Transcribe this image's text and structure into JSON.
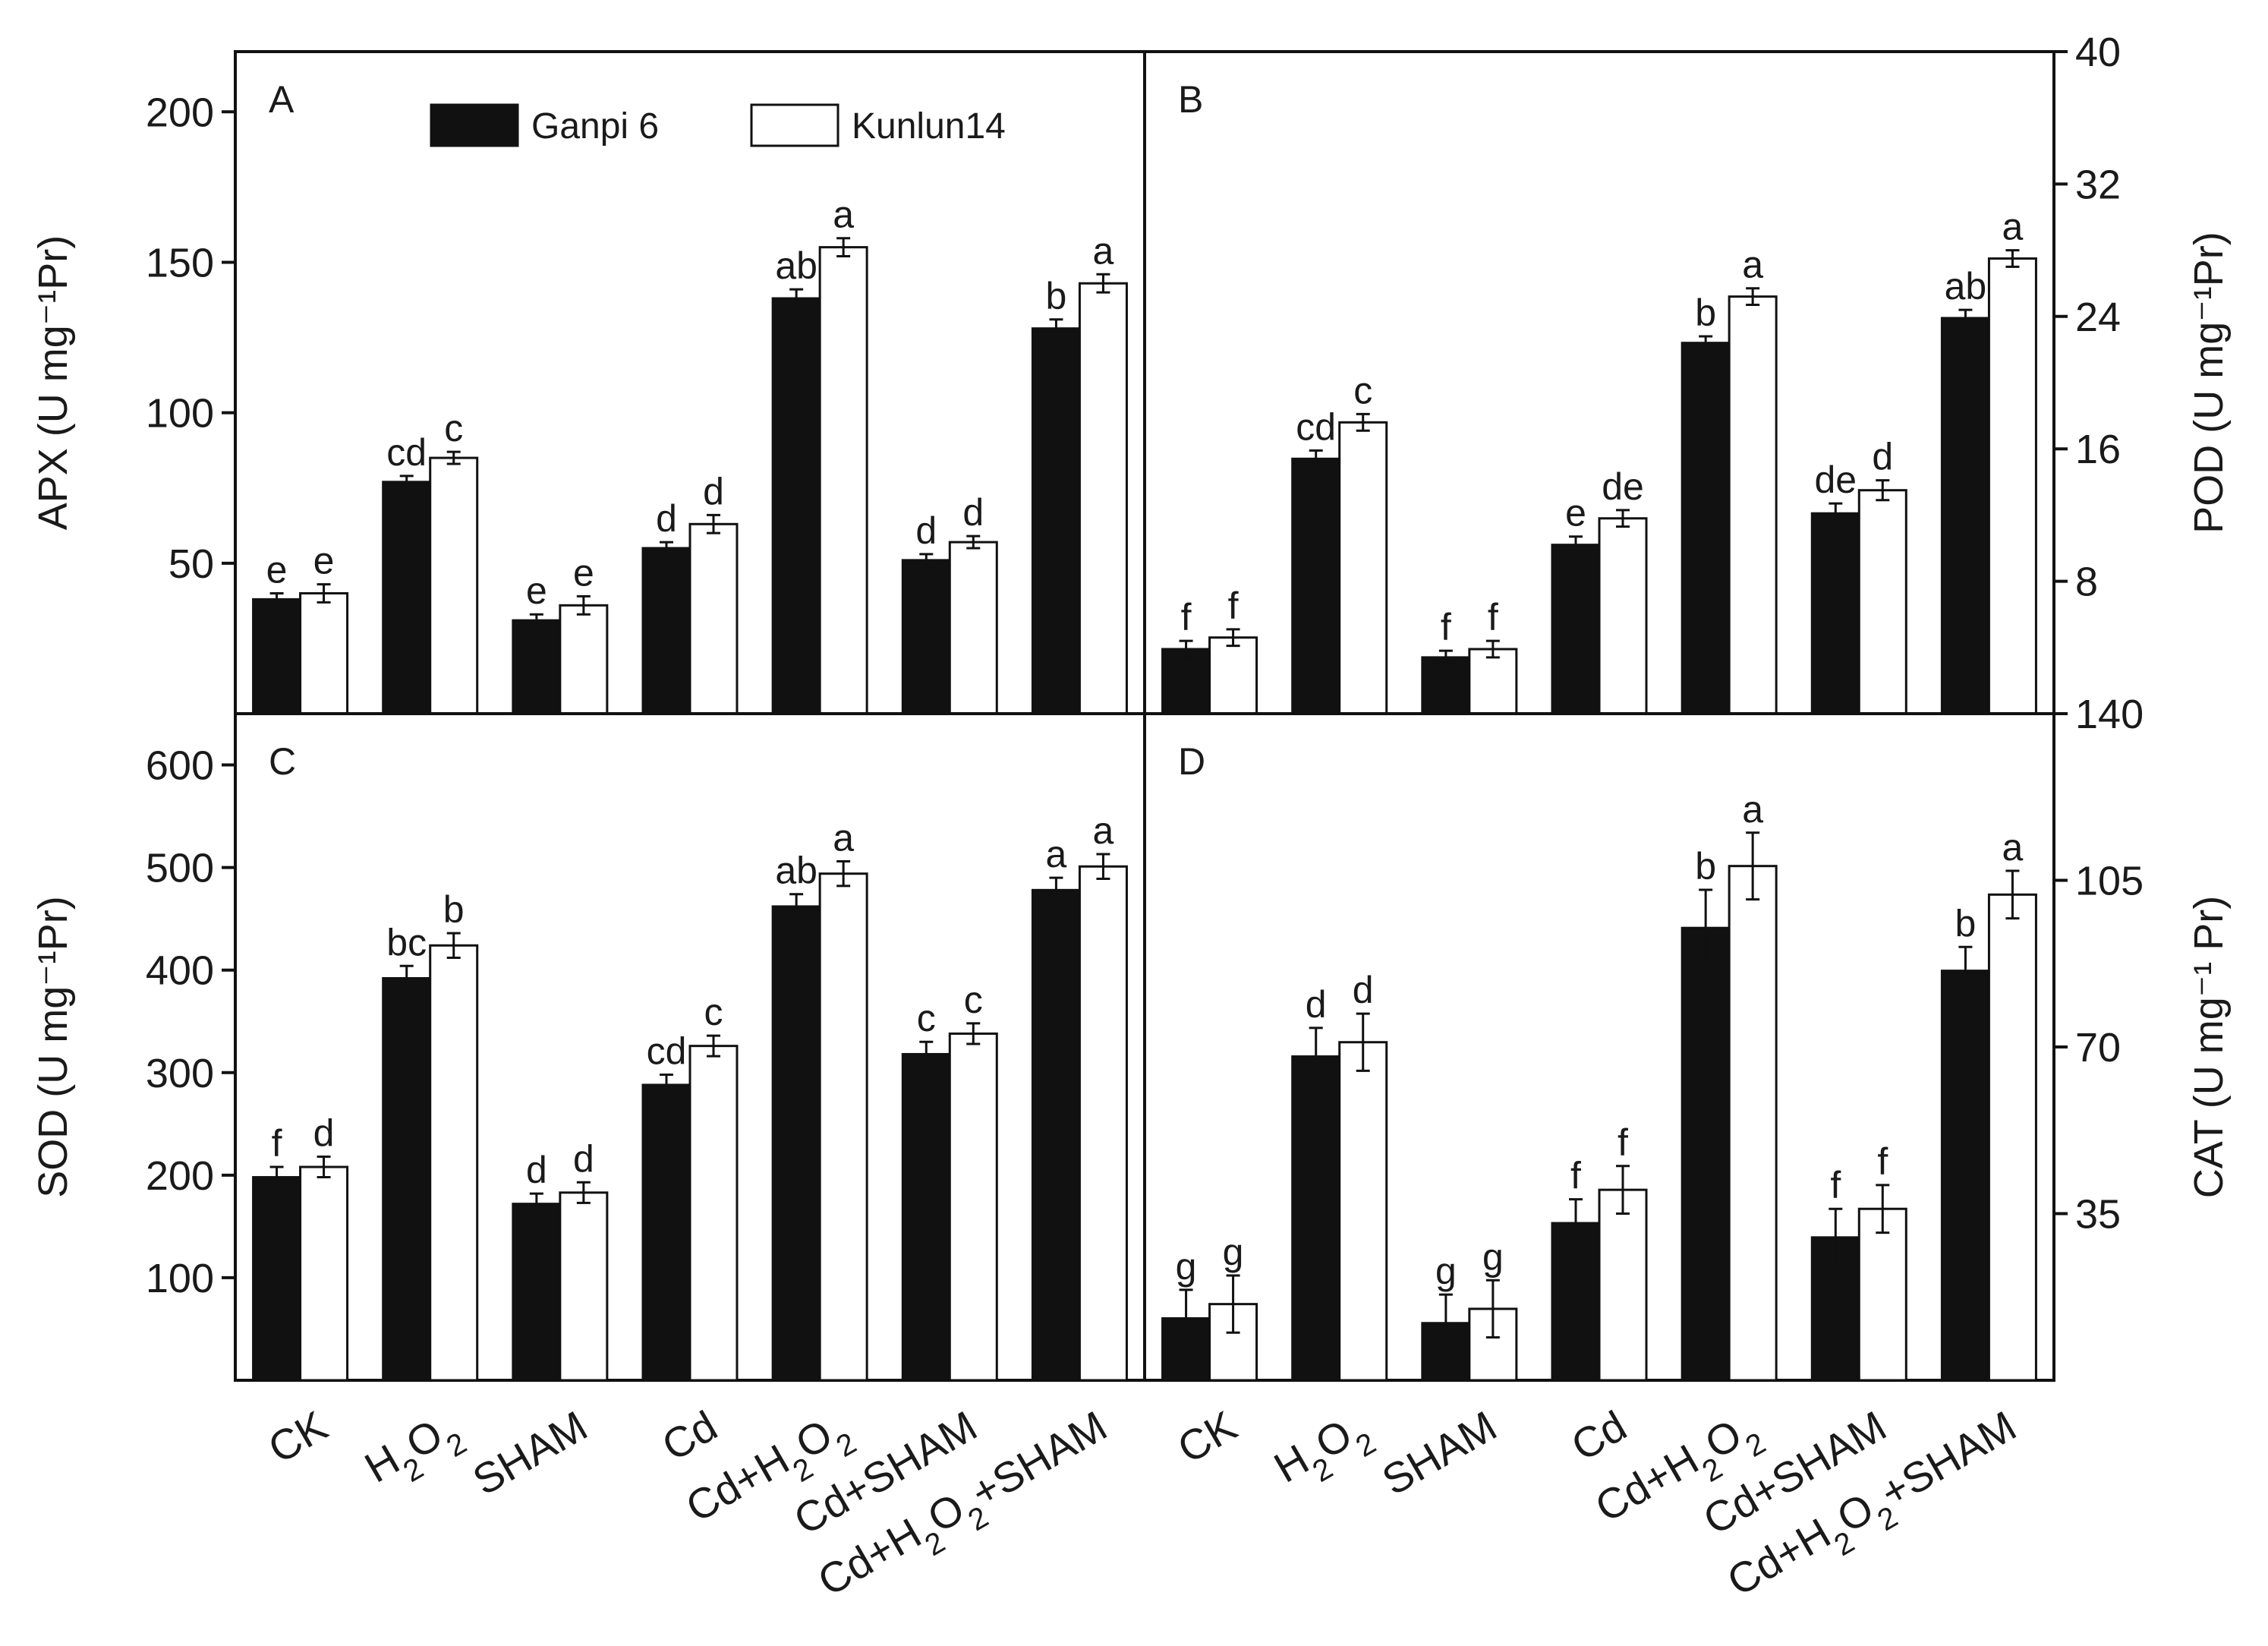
{
  "chart_data": [
    {
      "id": "A",
      "panel_label": "A",
      "type": "bar",
      "ylabel": "APX (U mg⁻¹Pr)",
      "ylim": [
        0,
        220
      ],
      "yticks": [
        50,
        100,
        150,
        200
      ],
      "categories": [
        "CK",
        "H2O2",
        "SHAM",
        "Cd",
        "Cd+H2O2",
        "Cd+SHAM",
        "Cd+H2O2+SHAM"
      ],
      "series": [
        {
          "name": "Ganpi 6",
          "values": [
            38,
            77,
            31,
            55,
            138,
            51,
            128
          ],
          "errors": [
            2,
            2,
            2,
            2,
            3,
            2,
            3
          ],
          "letters": [
            "e",
            "cd",
            "e",
            "d",
            "ab",
            "d",
            "b"
          ]
        },
        {
          "name": "Kunlun14",
          "values": [
            40,
            85,
            36,
            63,
            155,
            57,
            143
          ],
          "errors": [
            3,
            2,
            3,
            3,
            3,
            2,
            3
          ],
          "letters": [
            "e",
            "c",
            "e",
            "d",
            "a",
            "d",
            "a"
          ]
        }
      ]
    },
    {
      "id": "B",
      "panel_label": "B",
      "type": "bar",
      "ylabel": "POD (U mg⁻¹Pr)",
      "ylim": [
        0,
        40
      ],
      "yticks": [
        8,
        16,
        24,
        32,
        40
      ],
      "categories": [
        "CK",
        "H2O2",
        "SHAM",
        "Cd",
        "Cd+H2O2",
        "Cd+SHAM",
        "Cd+H2O2+SHAM"
      ],
      "series": [
        {
          "name": "Ganpi 6",
          "values": [
            3.9,
            15.4,
            3.4,
            10.2,
            22.4,
            12.1,
            23.9
          ],
          "errors": [
            0.5,
            0.5,
            0.4,
            0.5,
            0.4,
            0.6,
            0.5
          ],
          "letters": [
            "f",
            "cd",
            "f",
            "e",
            "b",
            "de",
            "ab"
          ]
        },
        {
          "name": "Kunlun14",
          "values": [
            4.6,
            17.6,
            3.9,
            11.8,
            25.2,
            13.5,
            27.5
          ],
          "errors": [
            0.5,
            0.5,
            0.5,
            0.5,
            0.5,
            0.6,
            0.5
          ],
          "letters": [
            "f",
            "c",
            "f",
            "de",
            "a",
            "d",
            "a"
          ]
        }
      ]
    },
    {
      "id": "C",
      "panel_label": "C",
      "type": "bar",
      "ylabel": "SOD (U mg⁻¹Pr)",
      "ylim": [
        0,
        650
      ],
      "yticks": [
        100,
        200,
        300,
        400,
        500,
        600
      ],
      "categories": [
        "CK",
        "H2O2",
        "SHAM",
        "Cd",
        "Cd+H2O2",
        "Cd+SHAM",
        "Cd+H2O2+SHAM"
      ],
      "series": [
        {
          "name": "Ganpi 6",
          "values": [
            198,
            392,
            172,
            288,
            462,
            318,
            478
          ],
          "errors": [
            10,
            12,
            10,
            10,
            12,
            12,
            12
          ],
          "letters": [
            "f",
            "bc",
            "d",
            "cd",
            "ab",
            "c",
            "a"
          ]
        },
        {
          "name": "Kunlun14",
          "values": [
            208,
            424,
            183,
            326,
            494,
            338,
            501
          ],
          "errors": [
            10,
            12,
            10,
            10,
            12,
            10,
            12
          ],
          "letters": [
            "d",
            "b",
            "d",
            "c",
            "a",
            "c",
            "a"
          ]
        }
      ]
    },
    {
      "id": "D",
      "panel_label": "D",
      "type": "bar",
      "ylabel": "CAT (U mg⁻¹ Pr)",
      "ylim": [
        0,
        140
      ],
      "yticks": [
        35,
        70,
        105,
        140
      ],
      "categories": [
        "CK",
        "H2O2",
        "SHAM",
        "Cd",
        "Cd+H2O2",
        "Cd+SHAM",
        "Cd+H2O2+SHAM"
      ],
      "series": [
        {
          "name": "Ganpi 6",
          "values": [
            13,
            68,
            12,
            33,
            95,
            30,
            86
          ],
          "errors": [
            6,
            6,
            6,
            5,
            8,
            6,
            5
          ],
          "letters": [
            "g",
            "d",
            "g",
            "f",
            "b",
            "f",
            "b"
          ]
        },
        {
          "name": "Kunlun14",
          "values": [
            16,
            71,
            15,
            40,
            108,
            36,
            102
          ],
          "errors": [
            6,
            6,
            6,
            5,
            7,
            5,
            5
          ],
          "letters": [
            "g",
            "d",
            "g",
            "f",
            "a",
            "f",
            "a"
          ]
        }
      ]
    }
  ],
  "legend": {
    "items": [
      {
        "name": "Ganpi 6",
        "color": "#111111"
      },
      {
        "name": "Kunlun14",
        "color": "#ffffff"
      }
    ]
  },
  "colors": {
    "bar_dark": "#111111",
    "bar_light": "#ffffff",
    "axis": "#111111"
  }
}
